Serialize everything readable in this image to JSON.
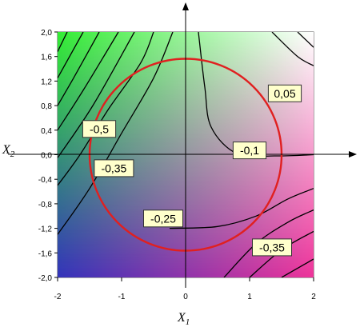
{
  "chart_data": {
    "type": "contour",
    "title": "",
    "xlabel": "X",
    "xlabel_sub": "1",
    "ylabel": "X",
    "ylabel_sub": "2",
    "xlim": [
      -2,
      2
    ],
    "ylim": [
      -2,
      2
    ],
    "x_ticks": [
      "-2",
      "-1",
      "0",
      "1",
      "2"
    ],
    "y_ticks": [
      "2,0",
      "1,6",
      "1,2",
      "0,8",
      "0,4",
      "0,0",
      "-0,4",
      "-0,8",
      "-1,2",
      "-1,6",
      "-2,0"
    ],
    "grid": false,
    "gradient_colors": {
      "top_left": "#33ee33",
      "top_right": "#ffffff",
      "bottom_left": "#3333bb",
      "bottom_right": "#ee3399"
    },
    "constraint_circle": {
      "center": [
        0,
        0
      ],
      "radius": 1.5,
      "color": "#e02020"
    },
    "contour_labels": [
      {
        "text": "0,05",
        "x": 1.55,
        "y": 1.0
      },
      {
        "text": "-0,5",
        "x": -1.35,
        "y": 0.42
      },
      {
        "text": "-0,1",
        "x": 1.0,
        "y": 0.07
      },
      {
        "text": "-0,35",
        "x": -1.12,
        "y": -0.22
      },
      {
        "text": "-0,25",
        "x": -0.35,
        "y": -1.04
      },
      {
        "text": "-0,35",
        "x": 1.35,
        "y": -1.51
      }
    ],
    "contour_lines": [
      [
        [
          -2.0,
          1.68
        ],
        [
          -1.85,
          2.0
        ]
      ],
      [
        [
          -2.0,
          1.25
        ],
        [
          -1.6,
          2.0
        ]
      ],
      [
        [
          -2.0,
          0.8
        ],
        [
          -1.75,
          1.25
        ],
        [
          -1.35,
          2.0
        ]
      ],
      [
        [
          -2.0,
          0.4
        ],
        [
          -1.6,
          1.05
        ],
        [
          -1.05,
          2.0
        ]
      ],
      [
        [
          -2.0,
          -0.05
        ],
        [
          -1.45,
          0.8
        ],
        [
          -0.8,
          2.0
        ]
      ],
      [
        [
          -2.0,
          -0.5
        ],
        [
          -1.65,
          0.0
        ],
        [
          -1.2,
          0.75
        ],
        [
          -0.7,
          1.5
        ],
        [
          -0.5,
          2.0
        ]
      ],
      [
        [
          -2.0,
          -1.3
        ],
        [
          -1.5,
          -0.55
        ],
        [
          -1.0,
          0.35
        ],
        [
          -0.5,
          1.25
        ],
        [
          -0.2,
          2.0
        ]
      ],
      [
        [
          0.2,
          2.0
        ],
        [
          0.3,
          1.1
        ],
        [
          0.4,
          0.45
        ],
        [
          0.8,
          0.02
        ],
        [
          1.4,
          -0.02
        ],
        [
          2.0,
          0.0
        ]
      ],
      [
        [
          -0.25,
          -1.2
        ],
        [
          0.5,
          -1.17
        ],
        [
          1.1,
          -1.0
        ],
        [
          1.6,
          -0.72
        ],
        [
          2.0,
          -0.55
        ]
      ],
      [
        [
          0.6,
          -2.0
        ],
        [
          1.1,
          -1.45
        ],
        [
          1.6,
          -1.1
        ],
        [
          2.0,
          -0.9
        ]
      ],
      [
        [
          1.0,
          -2.0
        ],
        [
          1.5,
          -1.55
        ],
        [
          2.0,
          -1.25
        ]
      ],
      [
        [
          1.5,
          -2.0
        ],
        [
          2.0,
          -1.7
        ]
      ],
      [
        [
          1.35,
          2.0
        ],
        [
          1.75,
          1.6
        ],
        [
          2.0,
          1.45
        ]
      ],
      [
        [
          1.75,
          2.0
        ],
        [
          2.0,
          1.75
        ]
      ]
    ]
  }
}
